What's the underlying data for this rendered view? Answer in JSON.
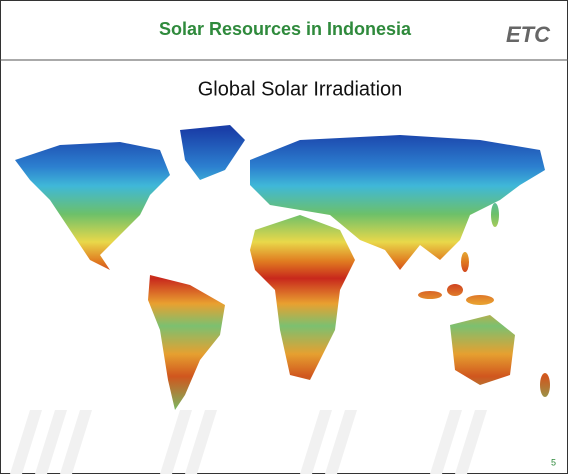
{
  "header": {
    "title": "Solar Resources in Indonesia",
    "logo": "ETC"
  },
  "subtitle": "Global Solar Irradiation",
  "page_number": "5"
}
